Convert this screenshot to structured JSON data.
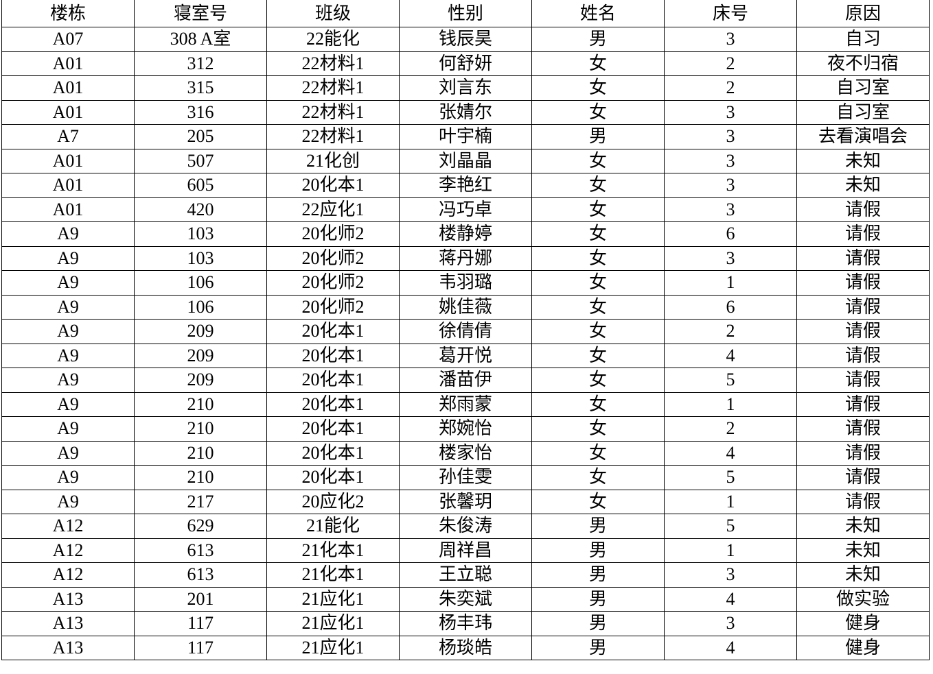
{
  "headers": [
    "楼栋",
    "寝室号",
    "班级",
    "性别",
    "姓名",
    "床号",
    "原因"
  ],
  "rows": [
    [
      "A07",
      "308 A室",
      "22能化",
      "钱辰昊",
      "男",
      "3",
      "自习"
    ],
    [
      "A01",
      "312",
      "22材料1",
      "何舒妍",
      "女",
      "2",
      "夜不归宿"
    ],
    [
      "A01",
      "315",
      "22材料1",
      "刘言东",
      "女",
      "2",
      "自习室"
    ],
    [
      "A01",
      "316",
      "22材料1",
      "张婧尔",
      "女",
      "3",
      "自习室"
    ],
    [
      "A7",
      "205",
      "22材料1",
      "叶宇楠",
      "男",
      "3",
      "去看演唱会"
    ],
    [
      "A01",
      "507",
      "21化创",
      "刘晶晶",
      "女",
      "3",
      "未知"
    ],
    [
      "A01",
      "605",
      "20化本1",
      "李艳红",
      "女",
      "3",
      "未知"
    ],
    [
      "A01",
      "420",
      "22应化1",
      "冯巧卓",
      "女",
      "3",
      "请假"
    ],
    [
      "A9",
      "103",
      "20化师2",
      "楼静婷",
      "女",
      "6",
      "请假"
    ],
    [
      "A9",
      "103",
      "20化师2",
      "蒋丹娜",
      "女",
      "3",
      "请假"
    ],
    [
      "A9",
      "106",
      "20化师2",
      "韦羽璐",
      "女",
      "1",
      "请假"
    ],
    [
      "A9",
      "106",
      "20化师2",
      "姚佳薇",
      "女",
      "6",
      "请假"
    ],
    [
      "A9",
      "209",
      "20化本1",
      "徐倩倩",
      "女",
      "2",
      "请假"
    ],
    [
      "A9",
      "209",
      "20化本1",
      "葛开悦",
      "女",
      "4",
      "请假"
    ],
    [
      "A9",
      "209",
      "20化本1",
      "潘苗伊",
      "女",
      "5",
      "请假"
    ],
    [
      "A9",
      "210",
      "20化本1",
      "郑雨蒙",
      "女",
      "1",
      "请假"
    ],
    [
      "A9",
      "210",
      "20化本1",
      "郑婉怡",
      "女",
      "2",
      "请假"
    ],
    [
      "A9",
      "210",
      "20化本1",
      "楼家怡",
      "女",
      "4",
      "请假"
    ],
    [
      "A9",
      "210",
      "20化本1",
      "孙佳雯",
      "女",
      "5",
      "请假"
    ],
    [
      "A9",
      "217",
      "20应化2",
      "张馨玥",
      "女",
      "1",
      "请假"
    ],
    [
      "A12",
      "629",
      "21能化",
      "朱俊涛",
      "男",
      "5",
      "未知"
    ],
    [
      "A12",
      "613",
      "21化本1",
      "周祥昌",
      "男",
      "1",
      "未知"
    ],
    [
      "A12",
      "613",
      "21化本1",
      "王立聪",
      "男",
      "3",
      "未知"
    ],
    [
      "A13",
      "201",
      "21应化1",
      "朱奕斌",
      "男",
      "4",
      "做实验"
    ],
    [
      "A13",
      "117",
      "21应化1",
      "杨丰玮",
      "男",
      "3",
      "健身"
    ],
    [
      "A13",
      "117",
      "21应化1",
      "杨琰皓",
      "男",
      "4",
      "健身"
    ]
  ]
}
